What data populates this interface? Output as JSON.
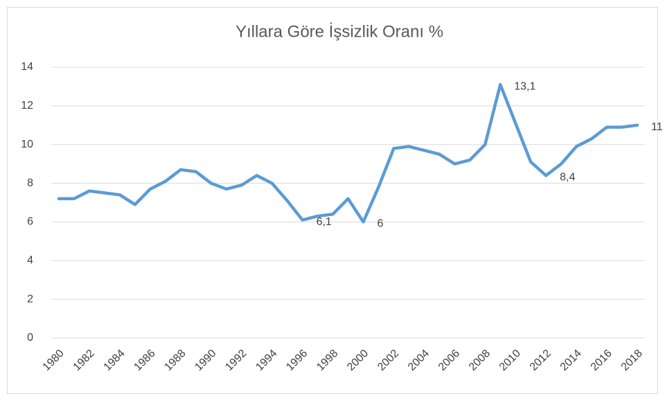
{
  "chart_data": {
    "type": "line",
    "title": "Yıllara Göre İşsizlik Oranı %",
    "categories": [
      "1980",
      null,
      "1982",
      null,
      "1984",
      null,
      "1986",
      null,
      "1988",
      null,
      "1990",
      null,
      "1992",
      null,
      "1994",
      null,
      "1996",
      null,
      "1998",
      null,
      "2000",
      null,
      "2002",
      null,
      "2004",
      null,
      "2006",
      null,
      "2008",
      null,
      "2010",
      null,
      "2012",
      null,
      "2014",
      null,
      "2016",
      null,
      "2018"
    ],
    "series": [
      {
        "name": "İşsizlik Oranı",
        "color": "#5b9bd5",
        "values": [
          7.2,
          7.2,
          7.6,
          7.5,
          7.4,
          6.9,
          7.7,
          8.1,
          8.7,
          8.6,
          8.0,
          7.7,
          7.9,
          8.4,
          8.0,
          7.1,
          6.1,
          6.3,
          6.4,
          7.2,
          6.0,
          7.8,
          9.8,
          9.9,
          9.7,
          9.5,
          9.0,
          9.2,
          10.0,
          13.1,
          11.1,
          9.1,
          8.4,
          9.0,
          9.9,
          10.3,
          10.9,
          10.9,
          11.0
        ],
        "value_labels": [
          null,
          null,
          null,
          null,
          null,
          null,
          null,
          null,
          null,
          null,
          null,
          null,
          null,
          null,
          null,
          null,
          "6,1",
          null,
          null,
          null,
          "6",
          null,
          null,
          null,
          null,
          null,
          null,
          null,
          null,
          "13,1",
          null,
          null,
          "8,4",
          null,
          null,
          null,
          null,
          null,
          "11"
        ]
      }
    ],
    "ylim": [
      0,
      14
    ],
    "yticks": [
      0,
      2,
      4,
      6,
      8,
      10,
      12,
      14
    ],
    "grid": true
  }
}
